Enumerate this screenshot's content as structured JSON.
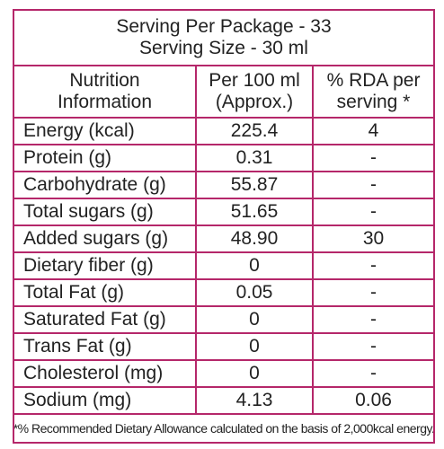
{
  "header": {
    "servings_per_package": "Serving Per Package - 33",
    "serving_size": "Serving Size - 30 ml"
  },
  "columns": [
    {
      "line1": "Nutrition",
      "line2": "Information"
    },
    {
      "line1": "Per 100 ml",
      "line2": "(Approx.)"
    },
    {
      "line1": "% RDA per",
      "line2": "serving *"
    }
  ],
  "rows": [
    {
      "nutrient": "Energy (kcal)",
      "per100": "225.4",
      "rda": "4"
    },
    {
      "nutrient": "Protein (g)",
      "per100": "0.31",
      "rda": "-"
    },
    {
      "nutrient": "Carbohydrate (g)",
      "per100": "55.87",
      "rda": "-"
    },
    {
      "nutrient": "Total sugars (g)",
      "per100": "51.65",
      "rda": "-"
    },
    {
      "nutrient": "Added sugars (g)",
      "per100": "48.90",
      "rda": "30"
    },
    {
      "nutrient": "Dietary fiber (g)",
      "per100": "0",
      "rda": "-"
    },
    {
      "nutrient": "Total Fat (g)",
      "per100": "0.05",
      "rda": "-"
    },
    {
      "nutrient": "Saturated Fat (g)",
      "per100": "0",
      "rda": "-"
    },
    {
      "nutrient": "Trans Fat (g)",
      "per100": "0",
      "rda": "-"
    },
    {
      "nutrient": "Cholesterol (mg)",
      "per100": "0",
      "rda": "-"
    },
    {
      "nutrient": "Sodium (mg)",
      "per100": "4.13",
      "rda": "0.06"
    }
  ],
  "footnote": "*% Recommended Dietary Allowance calculated on the basis of 2,000kcal energy.",
  "colors": {
    "border": "#b5276a",
    "text": "#222222"
  }
}
